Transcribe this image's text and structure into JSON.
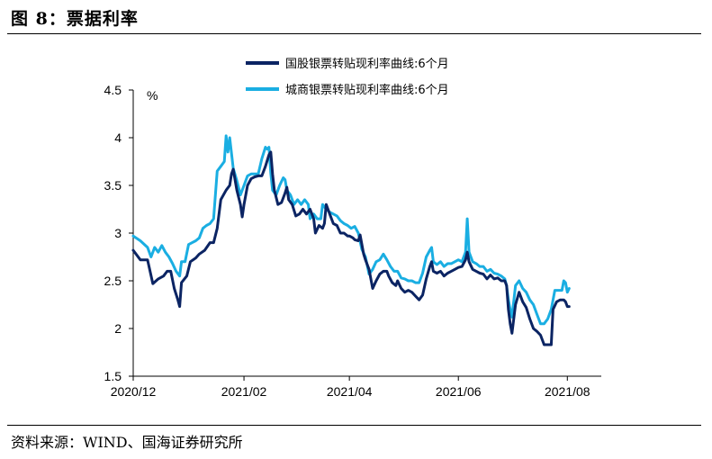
{
  "figure_title": "图 8：票据利率",
  "source": "资料来源：WIND、国海证券研究所",
  "colors": {
    "series1": "#0b2463",
    "series2": "#1aaee2"
  },
  "chart_data": {
    "type": "line",
    "ylabel": "%",
    "ylim": [
      1.5,
      4.5
    ],
    "yticks": [
      "1.5",
      "2",
      "2.5",
      "3",
      "3.5",
      "4",
      "4.5"
    ],
    "x_domain": [
      0,
      262
    ],
    "xticks": [
      {
        "label": "2020/12",
        "x": 0
      },
      {
        "label": "2021/02",
        "x": 62
      },
      {
        "label": "2021/04",
        "x": 121
      },
      {
        "label": "2021/06",
        "x": 182
      },
      {
        "label": "2021/08",
        "x": 243
      }
    ],
    "legend_position": "top-center",
    "series": [
      {
        "name": "国股银票转贴现利率曲线:6个月",
        "color": "#0b2463",
        "points": [
          [
            0,
            2.82
          ],
          [
            4,
            2.72
          ],
          [
            8,
            2.72
          ],
          [
            11,
            2.47
          ],
          [
            14,
            2.52
          ],
          [
            17,
            2.55
          ],
          [
            19,
            2.6
          ],
          [
            21,
            2.6
          ],
          [
            23,
            2.42
          ],
          [
            25,
            2.3
          ],
          [
            26,
            2.23
          ],
          [
            27,
            2.48
          ],
          [
            30,
            2.55
          ],
          [
            32,
            2.7
          ],
          [
            35,
            2.74
          ],
          [
            37,
            2.78
          ],
          [
            40,
            2.82
          ],
          [
            43,
            2.9
          ],
          [
            45,
            2.9
          ],
          [
            47,
            3.05
          ],
          [
            49,
            3.35
          ],
          [
            52,
            3.45
          ],
          [
            54,
            3.5
          ],
          [
            55,
            3.62
          ],
          [
            56,
            3.67
          ],
          [
            58,
            3.45
          ],
          [
            60,
            3.3
          ],
          [
            61,
            3.17
          ],
          [
            62,
            3.3
          ],
          [
            64,
            3.5
          ],
          [
            66,
            3.57
          ],
          [
            68,
            3.59
          ],
          [
            70,
            3.6
          ],
          [
            72,
            3.6
          ],
          [
            74,
            3.7
          ],
          [
            76,
            3.82
          ],
          [
            77,
            3.85
          ],
          [
            78,
            3.62
          ],
          [
            79,
            3.45
          ],
          [
            81,
            3.3
          ],
          [
            83,
            3.32
          ],
          [
            85,
            3.42
          ],
          [
            86,
            3.48
          ],
          [
            87,
            3.35
          ],
          [
            89,
            3.3
          ],
          [
            91,
            3.18
          ],
          [
            93,
            3.2
          ],
          [
            95,
            3.25
          ],
          [
            97,
            3.2
          ],
          [
            99,
            3.25
          ],
          [
            101,
            3.15
          ],
          [
            102,
            3.0
          ],
          [
            104,
            3.08
          ],
          [
            106,
            3.05
          ],
          [
            107,
            3.1
          ],
          [
            108,
            3.3
          ],
          [
            110,
            3.2
          ],
          [
            112,
            3.1
          ],
          [
            114,
            3.08
          ],
          [
            116,
            3.0
          ],
          [
            118,
            3.0
          ],
          [
            120,
            2.97
          ],
          [
            121,
            2.97
          ],
          [
            123,
            2.95
          ],
          [
            124,
            2.93
          ],
          [
            126,
            2.92
          ],
          [
            127,
            2.98
          ],
          [
            129,
            2.78
          ],
          [
            130,
            2.72
          ],
          [
            132,
            2.62
          ],
          [
            134,
            2.42
          ],
          [
            136,
            2.5
          ],
          [
            138,
            2.57
          ],
          [
            140,
            2.6
          ],
          [
            142,
            2.6
          ],
          [
            143,
            2.55
          ],
          [
            145,
            2.48
          ],
          [
            147,
            2.45
          ],
          [
            148,
            2.5
          ],
          [
            150,
            2.42
          ],
          [
            152,
            2.38
          ],
          [
            154,
            2.4
          ],
          [
            156,
            2.38
          ],
          [
            158,
            2.34
          ],
          [
            160,
            2.3
          ],
          [
            162,
            2.35
          ],
          [
            164,
            2.52
          ],
          [
            166,
            2.65
          ],
          [
            167,
            2.7
          ],
          [
            168,
            2.6
          ],
          [
            170,
            2.58
          ],
          [
            172,
            2.6
          ],
          [
            174,
            2.55
          ],
          [
            176,
            2.58
          ],
          [
            178,
            2.6
          ],
          [
            180,
            2.62
          ],
          [
            182,
            2.64
          ],
          [
            184,
            2.65
          ],
          [
            186,
            2.72
          ],
          [
            187,
            2.8
          ],
          [
            188,
            2.7
          ],
          [
            190,
            2.62
          ],
          [
            192,
            2.6
          ],
          [
            194,
            2.58
          ],
          [
            196,
            2.57
          ],
          [
            198,
            2.52
          ],
          [
            200,
            2.56
          ],
          [
            202,
            2.52
          ],
          [
            204,
            2.53
          ],
          [
            206,
            2.5
          ],
          [
            208,
            2.5
          ],
          [
            209,
            2.45
          ],
          [
            210,
            2.2
          ],
          [
            211,
            2.05
          ],
          [
            212,
            1.95
          ],
          [
            214,
            2.25
          ],
          [
            216,
            2.38
          ],
          [
            218,
            2.28
          ],
          [
            220,
            2.22
          ],
          [
            222,
            2.1
          ],
          [
            224,
            2.0
          ],
          [
            226,
            1.97
          ],
          [
            228,
            1.93
          ],
          [
            230,
            1.83
          ],
          [
            232,
            1.83
          ],
          [
            234,
            1.83
          ],
          [
            235,
            2.2
          ],
          [
            237,
            2.28
          ],
          [
            239,
            2.3
          ],
          [
            241,
            2.3
          ],
          [
            242,
            2.28
          ],
          [
            243,
            2.23
          ],
          [
            244,
            2.23
          ]
        ]
      },
      {
        "name": "城商银票转贴现利率曲线:6个月",
        "color": "#1aaee2",
        "points": [
          [
            0,
            2.97
          ],
          [
            4,
            2.92
          ],
          [
            8,
            2.85
          ],
          [
            10,
            2.75
          ],
          [
            12,
            2.85
          ],
          [
            14,
            2.8
          ],
          [
            16,
            2.87
          ],
          [
            18,
            2.8
          ],
          [
            20,
            2.75
          ],
          [
            22,
            2.68
          ],
          [
            24,
            2.6
          ],
          [
            26,
            2.55
          ],
          [
            27,
            2.7
          ],
          [
            29,
            2.7
          ],
          [
            31,
            2.88
          ],
          [
            33,
            2.9
          ],
          [
            35,
            2.92
          ],
          [
            37,
            2.95
          ],
          [
            39,
            3.05
          ],
          [
            41,
            3.08
          ],
          [
            43,
            3.1
          ],
          [
            45,
            3.15
          ],
          [
            47,
            3.65
          ],
          [
            49,
            3.7
          ],
          [
            51,
            3.75
          ],
          [
            52,
            4.02
          ],
          [
            53,
            3.85
          ],
          [
            54,
            4.0
          ],
          [
            56,
            3.68
          ],
          [
            58,
            3.55
          ],
          [
            60,
            3.4
          ],
          [
            62,
            3.5
          ],
          [
            64,
            3.6
          ],
          [
            66,
            3.62
          ],
          [
            68,
            3.62
          ],
          [
            70,
            3.62
          ],
          [
            72,
            3.78
          ],
          [
            74,
            3.9
          ],
          [
            75,
            3.88
          ],
          [
            76,
            3.9
          ],
          [
            77,
            3.63
          ],
          [
            78,
            3.45
          ],
          [
            80,
            3.4
          ],
          [
            82,
            3.5
          ],
          [
            84,
            3.58
          ],
          [
            85,
            3.56
          ],
          [
            86,
            3.45
          ],
          [
            88,
            3.4
          ],
          [
            90,
            3.3
          ],
          [
            92,
            3.35
          ],
          [
            94,
            3.3
          ],
          [
            96,
            3.35
          ],
          [
            98,
            3.3
          ],
          [
            99,
            3.15
          ],
          [
            101,
            3.2
          ],
          [
            103,
            3.15
          ],
          [
            105,
            3.15
          ],
          [
            106,
            3.3
          ],
          [
            108,
            3.25
          ],
          [
            110,
            3.22
          ],
          [
            112,
            3.2
          ],
          [
            114,
            3.18
          ],
          [
            116,
            3.13
          ],
          [
            118,
            3.1
          ],
          [
            120,
            3.08
          ],
          [
            122,
            3.05
          ],
          [
            124,
            3.07
          ],
          [
            126,
            3.0
          ],
          [
            128,
            2.83
          ],
          [
            130,
            2.75
          ],
          [
            132,
            2.57
          ],
          [
            134,
            2.62
          ],
          [
            136,
            2.7
          ],
          [
            138,
            2.72
          ],
          [
            140,
            2.78
          ],
          [
            142,
            2.72
          ],
          [
            144,
            2.65
          ],
          [
            146,
            2.6
          ],
          [
            148,
            2.6
          ],
          [
            150,
            2.53
          ],
          [
            152,
            2.52
          ],
          [
            154,
            2.5
          ],
          [
            156,
            2.5
          ],
          [
            158,
            2.48
          ],
          [
            160,
            2.48
          ],
          [
            162,
            2.58
          ],
          [
            164,
            2.75
          ],
          [
            166,
            2.82
          ],
          [
            167,
            2.85
          ],
          [
            168,
            2.7
          ],
          [
            170,
            2.67
          ],
          [
            172,
            2.7
          ],
          [
            174,
            2.65
          ],
          [
            176,
            2.68
          ],
          [
            178,
            2.68
          ],
          [
            180,
            2.7
          ],
          [
            182,
            2.72
          ],
          [
            184,
            2.7
          ],
          [
            186,
            2.8
          ],
          [
            187,
            3.15
          ],
          [
            188,
            2.8
          ],
          [
            190,
            2.7
          ],
          [
            192,
            2.68
          ],
          [
            194,
            2.65
          ],
          [
            196,
            2.65
          ],
          [
            198,
            2.6
          ],
          [
            200,
            2.62
          ],
          [
            202,
            2.58
          ],
          [
            204,
            2.57
          ],
          [
            206,
            2.55
          ],
          [
            208,
            2.52
          ],
          [
            209,
            2.45
          ],
          [
            210,
            2.3
          ],
          [
            211,
            2.2
          ],
          [
            212,
            2.12
          ],
          [
            214,
            2.45
          ],
          [
            216,
            2.5
          ],
          [
            218,
            2.42
          ],
          [
            220,
            2.38
          ],
          [
            222,
            2.3
          ],
          [
            224,
            2.25
          ],
          [
            226,
            2.15
          ],
          [
            228,
            2.05
          ],
          [
            230,
            2.05
          ],
          [
            232,
            2.1
          ],
          [
            234,
            2.2
          ],
          [
            236,
            2.4
          ],
          [
            238,
            2.4
          ],
          [
            240,
            2.4
          ],
          [
            241,
            2.5
          ],
          [
            242,
            2.48
          ],
          [
            243,
            2.38
          ],
          [
            244,
            2.42
          ]
        ]
      }
    ]
  }
}
